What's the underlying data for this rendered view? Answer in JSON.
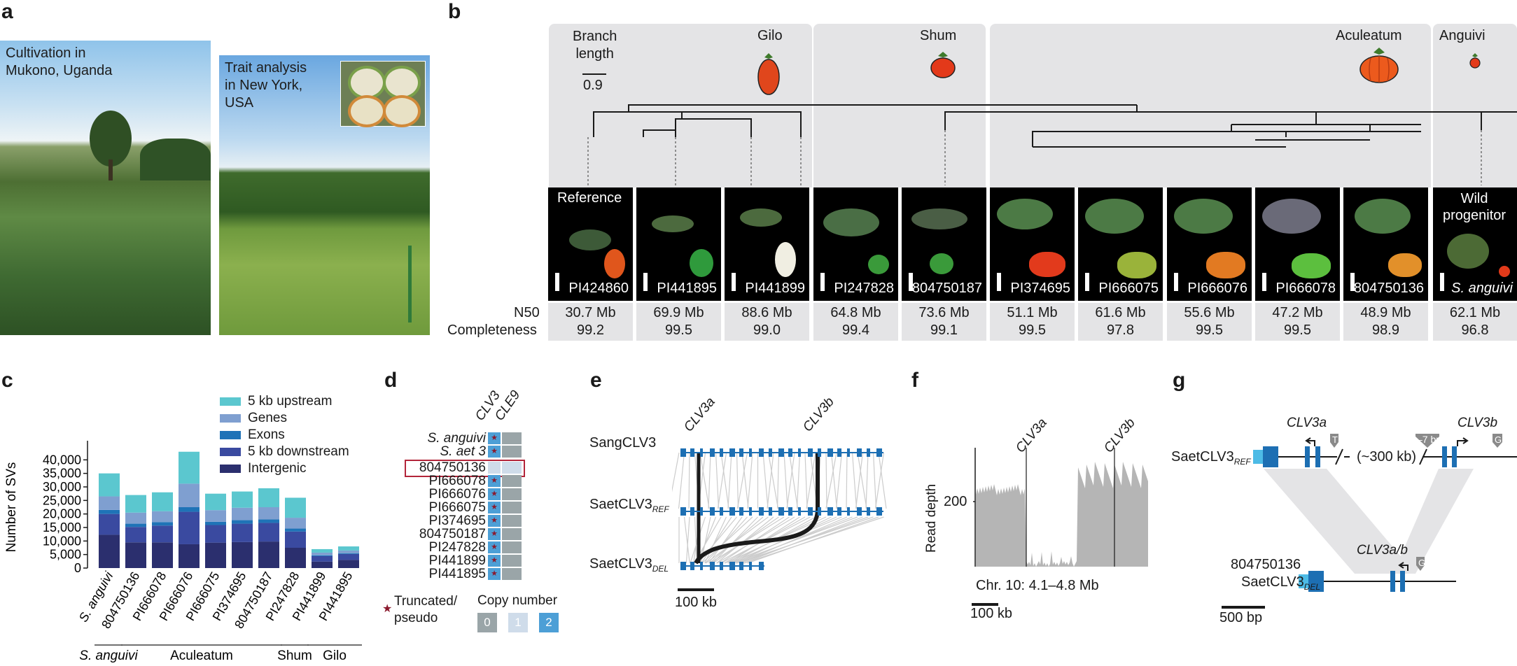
{
  "panels": {
    "a": "a",
    "b": "b",
    "c": "c",
    "d": "d",
    "e": "e",
    "f": "f",
    "g": "g"
  },
  "panel_a": {
    "photo1_text": "Cultivation in\nMukono, Uganda",
    "photo2_text": "Trait analysis\nin New York,\nUSA"
  },
  "panel_b": {
    "groups": [
      "Gilo",
      "Shum",
      "Aculeatum",
      "Anguivi"
    ],
    "branch_length_label": "Branch\nlength",
    "branch_length_value": "0.9",
    "reference_label": "Reference",
    "wild_label": "Wild\nprogenitor",
    "row_labels": {
      "n50": "N50",
      "completeness": "Completeness"
    },
    "accessions": [
      {
        "id": "PI424860",
        "n50": "30.7 Mb",
        "completeness": "99.2"
      },
      {
        "id": "PI441895",
        "n50": "69.9 Mb",
        "completeness": "99.5"
      },
      {
        "id": "PI441899",
        "n50": "88.6 Mb",
        "completeness": "99.0"
      },
      {
        "id": "PI247828",
        "n50": "64.8 Mb",
        "completeness": "99.4"
      },
      {
        "id": "804750187",
        "n50": "73.6 Mb",
        "completeness": "99.1"
      },
      {
        "id": "PI374695",
        "n50": "51.1 Mb",
        "completeness": "99.5"
      },
      {
        "id": "PI666075",
        "n50": "61.6 Mb",
        "completeness": "97.8"
      },
      {
        "id": "PI666076",
        "n50": "55.6 Mb",
        "completeness": "99.5"
      },
      {
        "id": "PI666078",
        "n50": "47.2 Mb",
        "completeness": "99.5"
      },
      {
        "id": "804750136",
        "n50": "48.9 Mb",
        "completeness": "98.9"
      },
      {
        "id": "S. anguivi",
        "n50": "62.1 Mb",
        "completeness": "96.8"
      }
    ]
  },
  "chart_data": {
    "type": "bar",
    "ylabel": "Number of SVs",
    "ylim": [
      0,
      45000
    ],
    "yticks": [
      "0",
      "5,000",
      "10,000",
      "15,000",
      "20,000",
      "25,000",
      "30,000",
      "35,000",
      "40,000"
    ],
    "categories": [
      "S. anguivi",
      "804750136",
      "PI666078",
      "PI666076",
      "PI666075",
      "PI374695",
      "804750187",
      "PI247828",
      "PI441899",
      "PI441895"
    ],
    "series": [
      {
        "name": "Intergenic",
        "color": "#2b2f6e",
        "values": [
          12300,
          9500,
          9500,
          8800,
          9400,
          9600,
          9800,
          7500,
          2400,
          3000
        ]
      },
      {
        "name": "5 kb downstream",
        "color": "#3a4aa0",
        "values": [
          7700,
          5700,
          6200,
          12000,
          6500,
          6800,
          6900,
          6000,
          2000,
          2200
        ]
      },
      {
        "name": "Exons",
        "color": "#1f73b7",
        "values": [
          1500,
          1200,
          1300,
          1700,
          1200,
          1300,
          1300,
          1100,
          300,
          300
        ]
      },
      {
        "name": "Genes",
        "color": "#7f9fd0",
        "values": [
          5000,
          4100,
          4000,
          8700,
          4300,
          4600,
          4500,
          4000,
          1000,
          1000
        ]
      },
      {
        "name": "5 kb upstream",
        "color": "#5bc7cf",
        "values": [
          8500,
          6500,
          7000,
          11800,
          6100,
          6000,
          7000,
          7400,
          1300,
          1500
        ]
      }
    ],
    "groups": [
      {
        "name": "S. anguivi",
        "span": [
          0,
          0
        ]
      },
      {
        "name": "Aculeatum",
        "span": [
          1,
          6
        ]
      },
      {
        "name": "Shum",
        "span": [
          7,
          7
        ]
      },
      {
        "name": "Gilo",
        "span": [
          8,
          9
        ]
      }
    ]
  },
  "panel_d": {
    "col_headers": [
      "CLV3",
      "CLE9"
    ],
    "rows": [
      {
        "label": "S. anguivi",
        "italic": true,
        "clv3": 2,
        "clv3_trunc": true,
        "cle9": 0
      },
      {
        "label": "S. aet 3",
        "italic": true,
        "clv3": 2,
        "clv3_trunc": true,
        "cle9": 0
      },
      {
        "label": "804750136",
        "italic": false,
        "clv3": 1,
        "clv3_trunc": false,
        "cle9": 1,
        "highlight": true
      },
      {
        "label": "PI666078",
        "italic": false,
        "clv3": 2,
        "clv3_trunc": true,
        "cle9": 0
      },
      {
        "label": "PI666076",
        "italic": false,
        "clv3": 2,
        "clv3_trunc": true,
        "cle9": 0
      },
      {
        "label": "PI666075",
        "italic": false,
        "clv3": 2,
        "clv3_trunc": true,
        "cle9": 0
      },
      {
        "label": "PI374695",
        "italic": false,
        "clv3": 2,
        "clv3_trunc": true,
        "cle9": 0
      },
      {
        "label": "804750187",
        "italic": false,
        "clv3": 2,
        "clv3_trunc": true,
        "cle9": 0
      },
      {
        "label": "PI247828",
        "italic": false,
        "clv3": 2,
        "clv3_trunc": true,
        "cle9": 0
      },
      {
        "label": "PI441899",
        "italic": false,
        "clv3": 2,
        "clv3_trunc": true,
        "cle9": 0
      },
      {
        "label": "PI441895",
        "italic": false,
        "clv3": 2,
        "clv3_trunc": true,
        "cle9": 0
      }
    ],
    "legend_trunc": "Truncated/\npseudo",
    "legend_copy": "Copy number",
    "copy_values": [
      "0",
      "1",
      "2"
    ],
    "copy_colors": [
      "#9aa5a8",
      "#cfdcea",
      "#4d9fd6"
    ]
  },
  "panel_e": {
    "clv3a": "CLV3a",
    "clv3b": "CLV3b",
    "track1": "SangCLV3",
    "track2": "SaetCLV3",
    "track2_sub": "REF",
    "track3": "SaetCLV3",
    "track3_sub": "DEL",
    "scale": "100 kb"
  },
  "panel_f": {
    "ylabel": "Read depth",
    "ytick": "200",
    "clv3a": "CLV3a",
    "clv3b": "CLV3b",
    "xlabel": "Chr. 10: 4.1–4.8 Mb",
    "scale": "100 kb"
  },
  "panel_g": {
    "clv3a": "CLV3a",
    "clv3b": "CLV3b",
    "ref_label": "SaetCLV3",
    "ref_sub": "REF",
    "gap_text": "(~300 kb)",
    "del7": "–7 bp",
    "t_mark": "T",
    "g_mark": "G",
    "acc": "804750136",
    "del_label": "SaetCLV3",
    "del_sub": "DEL",
    "fused": "CLV3a/b",
    "scale": "500 bp"
  }
}
